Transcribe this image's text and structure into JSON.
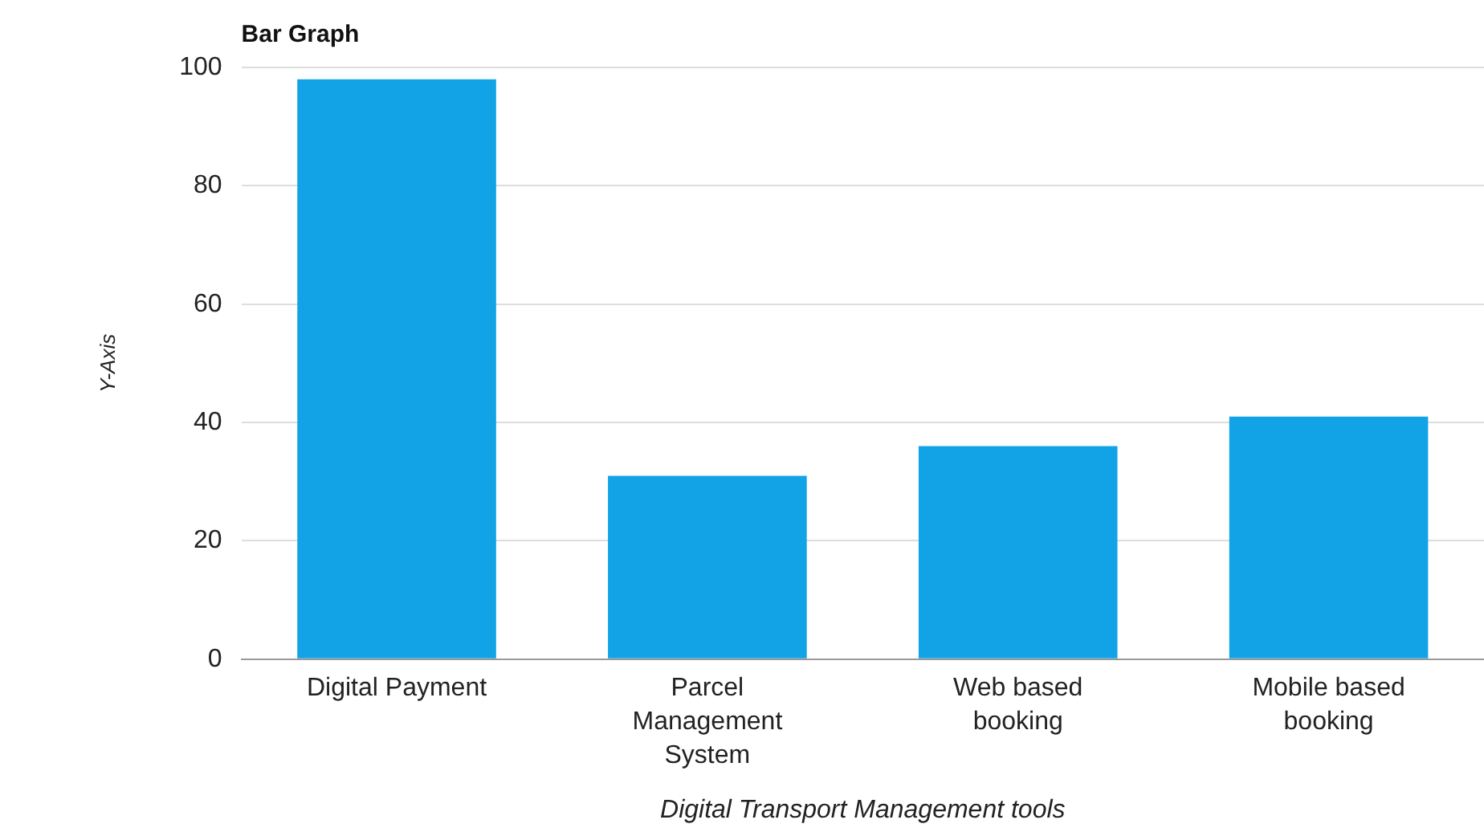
{
  "chart_data": {
    "type": "bar",
    "title": "Bar Graph",
    "xlabel": "Digital Transport Management tools",
    "ylabel": "Y-Axis",
    "categories": [
      "Digital Payment",
      "Parcel Management System",
      "Web based booking",
      "Mobile based booking"
    ],
    "values": [
      98,
      31,
      36,
      41
    ],
    "color": "#12a3e6",
    "ylim": [
      0,
      100
    ],
    "yticks": [
      0,
      20,
      40,
      60,
      80,
      100
    ],
    "grid": "y",
    "legend": false
  }
}
